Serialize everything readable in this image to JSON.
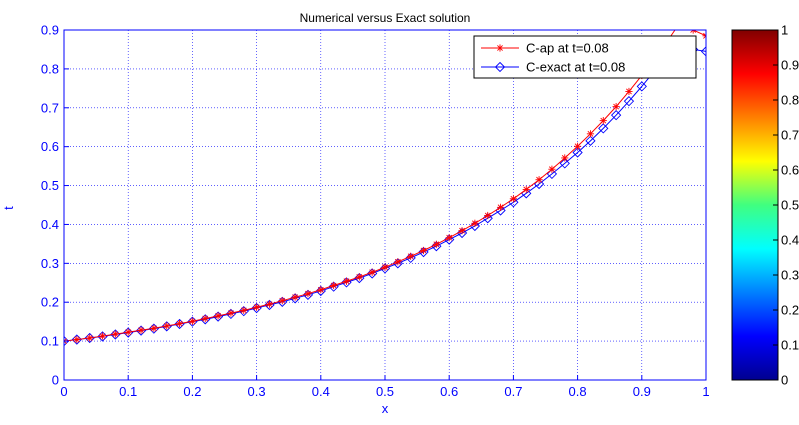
{
  "chart_data": {
    "type": "line",
    "title": "Numerical versus Exact solution",
    "xlabel": "x",
    "ylabel": "t",
    "xlim": [
      0,
      1
    ],
    "ylim": [
      0,
      0.9
    ],
    "x_ticks": [
      "0",
      "0.1",
      "0.2",
      "0.3",
      "0.4",
      "0.5",
      "0.6",
      "0.7",
      "0.8",
      "0.9",
      "1"
    ],
    "y_ticks": [
      "0",
      "0.1",
      "0.2",
      "0.3",
      "0.4",
      "0.5",
      "0.6",
      "0.7",
      "0.8",
      "0.9"
    ],
    "grid": true,
    "legend_position": "top-right",
    "series": [
      {
        "name": "C-ap at t=0.08",
        "color": "#ff0000",
        "marker": "asterisk",
        "x": [
          0,
          0.02,
          0.04,
          0.06,
          0.08,
          0.1,
          0.12,
          0.14,
          0.16,
          0.18,
          0.2,
          0.22,
          0.24,
          0.26,
          0.28,
          0.3,
          0.32,
          0.34,
          0.36,
          0.38,
          0.4,
          0.42,
          0.44,
          0.46,
          0.48,
          0.5,
          0.52,
          0.54,
          0.56,
          0.58,
          0.6,
          0.62,
          0.64,
          0.66,
          0.68,
          0.7,
          0.72,
          0.74,
          0.76,
          0.78,
          0.8,
          0.82,
          0.84,
          0.86,
          0.88,
          0.9,
          0.92,
          0.94,
          0.96,
          0.98,
          1.0
        ],
        "values": [
          0.1,
          0.104,
          0.108,
          0.113,
          0.118,
          0.123,
          0.128,
          0.133,
          0.139,
          0.145,
          0.151,
          0.158,
          0.165,
          0.172,
          0.179,
          0.187,
          0.195,
          0.204,
          0.213,
          0.222,
          0.232,
          0.243,
          0.254,
          0.265,
          0.277,
          0.29,
          0.304,
          0.318,
          0.333,
          0.349,
          0.366,
          0.384,
          0.403,
          0.423,
          0.444,
          0.466,
          0.49,
          0.515,
          0.542,
          0.571,
          0.601,
          0.633,
          0.667,
          0.703,
          0.742,
          0.783,
          0.826,
          0.872,
          0.92,
          0.9,
          0.885
        ]
      },
      {
        "name": "C-exact at t=0.08",
        "color": "#0000ff",
        "marker": "diamond",
        "x": [
          0,
          0.02,
          0.04,
          0.06,
          0.08,
          0.1,
          0.12,
          0.14,
          0.16,
          0.18,
          0.2,
          0.22,
          0.24,
          0.26,
          0.28,
          0.3,
          0.32,
          0.34,
          0.36,
          0.38,
          0.4,
          0.42,
          0.44,
          0.46,
          0.48,
          0.5,
          0.52,
          0.54,
          0.56,
          0.58,
          0.6,
          0.62,
          0.64,
          0.66,
          0.68,
          0.7,
          0.72,
          0.74,
          0.76,
          0.78,
          0.8,
          0.82,
          0.84,
          0.86,
          0.88,
          0.9,
          0.92,
          0.94,
          0.96,
          0.98,
          1.0
        ],
        "values": [
          0.1,
          0.104,
          0.108,
          0.112,
          0.117,
          0.122,
          0.127,
          0.132,
          0.138,
          0.144,
          0.15,
          0.156,
          0.163,
          0.17,
          0.177,
          0.185,
          0.193,
          0.201,
          0.21,
          0.219,
          0.229,
          0.24,
          0.251,
          0.262,
          0.274,
          0.287,
          0.3,
          0.314,
          0.329,
          0.344,
          0.361,
          0.378,
          0.396,
          0.416,
          0.436,
          0.457,
          0.48,
          0.504,
          0.53,
          0.557,
          0.585,
          0.615,
          0.647,
          0.681,
          0.717,
          0.755,
          0.795,
          0.84,
          0.87,
          0.85,
          0.845
        ]
      }
    ],
    "colorbar": {
      "ticks": [
        "0",
        "0.1",
        "0.2",
        "0.3",
        "0.4",
        "0.5",
        "0.6",
        "0.7",
        "0.8",
        "0.9",
        "1"
      ],
      "range": [
        0,
        1
      ],
      "colormap": "jet"
    }
  }
}
